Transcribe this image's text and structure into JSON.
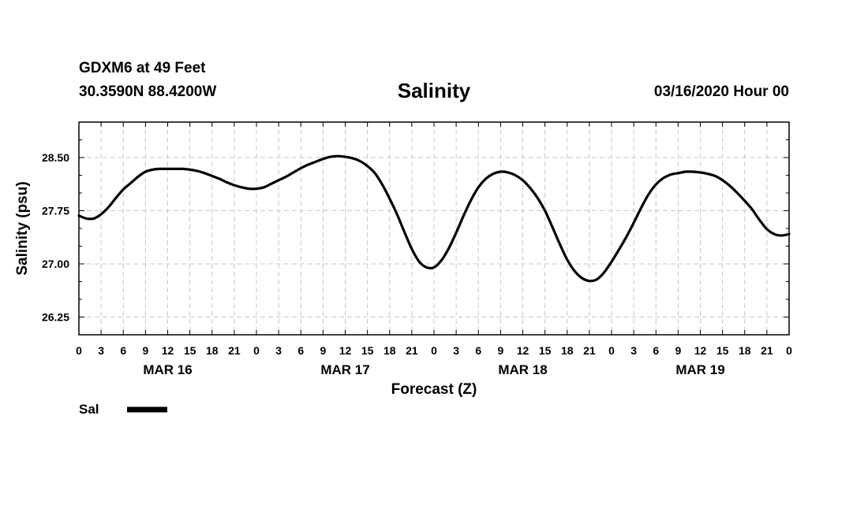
{
  "header": {
    "station": "GDXM6 at 49 Feet",
    "coordinates": "30.3590N 88.4200W",
    "title": "Salinity",
    "datetime": "03/16/2020 Hour 00"
  },
  "chart_data": {
    "type": "line",
    "title": "Salinity",
    "xlabel": "Forecast (Z)",
    "ylabel": "Salinity (psu)",
    "ylim": [
      26.0,
      29.0
    ],
    "xlim_hours": [
      0,
      96
    ],
    "yticks": [
      "26.25",
      "27.00",
      "27.75",
      "28.50"
    ],
    "ytick_values": [
      26.25,
      27.0,
      27.75,
      28.5
    ],
    "xtick_hours": [
      0,
      3,
      6,
      9,
      12,
      15,
      18,
      21,
      24,
      27,
      30,
      33,
      36,
      39,
      42,
      45,
      48,
      51,
      54,
      57,
      60,
      63,
      66,
      69,
      72,
      75,
      78,
      81,
      84,
      87,
      90,
      93,
      96
    ],
    "xtick_labels": [
      "0",
      "3",
      "6",
      "9",
      "12",
      "15",
      "18",
      "21",
      "0",
      "3",
      "6",
      "9",
      "12",
      "15",
      "18",
      "21",
      "0",
      "3",
      "6",
      "9",
      "12",
      "15",
      "18",
      "21",
      "0",
      "3",
      "6",
      "9",
      "12",
      "15",
      "18",
      "21",
      "0"
    ],
    "date_labels": [
      {
        "label": "MAR 16",
        "hour": 12
      },
      {
        "label": "MAR 17",
        "hour": 36
      },
      {
        "label": "MAR 18",
        "hour": 60
      },
      {
        "label": "MAR 19",
        "hour": 84
      }
    ],
    "grid": true,
    "legend": {
      "position": "bottom-left",
      "entries": [
        {
          "name": "Sal",
          "color": "#000000"
        }
      ]
    },
    "series": [
      {
        "name": "Sal",
        "color": "#000000",
        "x": [
          0,
          1,
          2,
          3,
          4,
          5,
          6,
          7,
          8,
          9,
          10,
          11,
          12,
          13,
          14,
          15,
          16,
          17,
          18,
          19,
          20,
          21,
          22,
          23,
          24,
          25,
          26,
          27,
          28,
          29,
          30,
          31,
          32,
          33,
          34,
          35,
          36,
          37,
          38,
          39,
          40,
          41,
          42,
          43,
          44,
          45,
          46,
          47,
          48,
          49,
          50,
          51,
          52,
          53,
          54,
          55,
          56,
          57,
          58,
          59,
          60,
          61,
          62,
          63,
          64,
          65,
          66,
          67,
          68,
          69,
          70,
          71,
          72,
          73,
          74,
          75,
          76,
          77,
          78,
          79,
          80,
          81,
          82,
          83,
          84,
          85,
          86,
          87,
          88,
          89,
          90,
          91,
          92,
          93,
          94,
          95,
          96
        ],
        "values": [
          27.68,
          27.64,
          27.64,
          27.7,
          27.8,
          27.93,
          28.05,
          28.14,
          28.23,
          28.3,
          28.33,
          28.34,
          28.34,
          28.34,
          28.34,
          28.33,
          28.31,
          28.28,
          28.24,
          28.2,
          28.15,
          28.11,
          28.08,
          28.06,
          28.06,
          28.08,
          28.13,
          28.18,
          28.23,
          28.29,
          28.35,
          28.4,
          28.44,
          28.48,
          28.51,
          28.52,
          28.51,
          28.49,
          28.45,
          28.38,
          28.28,
          28.12,
          27.92,
          27.7,
          27.45,
          27.21,
          27.03,
          26.95,
          26.95,
          27.05,
          27.22,
          27.44,
          27.68,
          27.9,
          28.08,
          28.2,
          28.27,
          28.3,
          28.29,
          28.25,
          28.18,
          28.07,
          27.93,
          27.75,
          27.52,
          27.28,
          27.06,
          26.9,
          26.8,
          26.76,
          26.78,
          26.88,
          27.03,
          27.2,
          27.38,
          27.58,
          27.79,
          27.98,
          28.12,
          28.21,
          28.26,
          28.28,
          28.3,
          28.3,
          28.29,
          28.27,
          28.24,
          28.18,
          28.1,
          28.0,
          27.89,
          27.77,
          27.62,
          27.49,
          27.42,
          27.4,
          27.42
        ]
      }
    ]
  }
}
